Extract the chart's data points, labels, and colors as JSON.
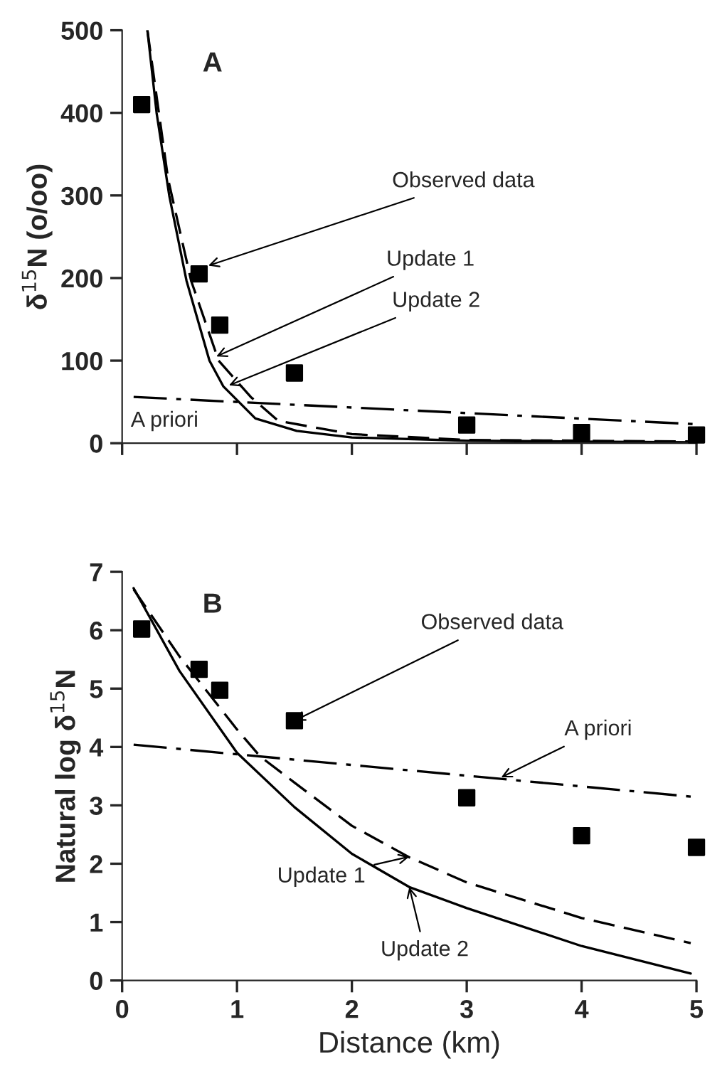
{
  "chart_data": [
    {
      "type": "line",
      "title": "A",
      "ylabel": "δ$^{15}$N (o/oo)",
      "xlim": [
        0,
        5
      ],
      "ylim": [
        0,
        500
      ],
      "xticks": [
        0,
        1,
        2,
        3,
        4,
        5
      ],
      "yticks": [
        0,
        100,
        200,
        300,
        400,
        500
      ],
      "tick_labels": "y",
      "grid": false,
      "legend": false,
      "series": [
        {
          "type": "scatter",
          "color": "#000000",
          "marker": "square",
          "x": [
            0.17,
            0.67,
            0.85,
            1.5,
            3,
            4,
            5
          ],
          "values": [
            410,
            205,
            143,
            85,
            22,
            13,
            10
          ]
        },
        {
          "color": "#000000",
          "line_style": "dashed",
          "x": [
            0.22,
            0.3,
            0.4,
            0.6,
            0.84,
            1.12,
            1.36,
            2.0,
            3.0,
            4.0,
            5.0
          ],
          "values": [
            500,
            420,
            320,
            197,
            100,
            56,
            27,
            11,
            4,
            3,
            2
          ]
        },
        {
          "color": "#000000",
          "line_style": "solid",
          "x": [
            0.22,
            0.3,
            0.41,
            0.56,
            0.76,
            0.88,
            1.16,
            1.52,
            2.0,
            3.0,
            4.0,
            5.0
          ],
          "values": [
            500,
            400,
            300,
            197,
            100,
            69,
            30,
            15,
            7,
            3,
            2,
            1
          ]
        },
        {
          "color": "#000000",
          "line_style": "dashdot",
          "x": [
            0.1,
            5.0
          ],
          "values": [
            56,
            23
          ]
        }
      ],
      "annotations": [
        {
          "text": "Observed data",
          "x": 0.75,
          "y": 215
        },
        {
          "text": "Update 1",
          "x": 0.82,
          "y": 105
        },
        {
          "text": "Update 2",
          "x": 0.93,
          "y": 70
        },
        "A priori"
      ]
    },
    {
      "type": "line",
      "title": "B",
      "xlabel": "Distance (km)",
      "ylabel": "Natural log δ$^{15}$N",
      "xlim": [
        0,
        5
      ],
      "ylim": [
        0,
        7
      ],
      "xticks": [
        0,
        1,
        2,
        3,
        4,
        5
      ],
      "yticks": [
        0,
        1,
        2,
        3,
        4,
        5,
        6,
        7
      ],
      "grid": false,
      "legend": false,
      "series": [
        {
          "type": "scatter",
          "color": "#000000",
          "marker": "square",
          "x": [
            0.17,
            0.67,
            0.85,
            1.5,
            3,
            4,
            5
          ],
          "values": [
            6.02,
            5.33,
            4.97,
            4.45,
            3.13,
            2.48,
            2.28
          ]
        },
        {
          "color": "#000000",
          "line_style": "dashed",
          "x": [
            0.1,
            0.5,
            1.0,
            1.2,
            1.5,
            2.0,
            2.5,
            3.0,
            4.0,
            4.95
          ],
          "values": [
            6.7,
            5.55,
            4.3,
            3.84,
            3.39,
            2.65,
            2.11,
            1.68,
            1.07,
            0.64
          ]
        },
        {
          "color": "#000000",
          "line_style": "solid",
          "x": [
            0.1,
            0.5,
            1.0,
            1.5,
            2.0,
            2.5,
            3.0,
            4.0,
            4.95
          ],
          "values": [
            6.72,
            5.3,
            3.9,
            2.97,
            2.17,
            1.6,
            1.24,
            0.59,
            0.12
          ]
        },
        {
          "color": "#000000",
          "line_style": "dashdot",
          "x": [
            0.1,
            4.95
          ],
          "values": [
            4.04,
            3.15
          ]
        }
      ],
      "annotations": [
        {
          "text": "Observed data",
          "x": 1.5,
          "y": 4.45
        },
        {
          "text": "A priori",
          "x": 3.3,
          "y": 3.48
        },
        {
          "text": "Update 1",
          "x": 2.5,
          "y": 2.12
        },
        {
          "text": "Update 2",
          "x": 2.5,
          "y": 1.6
        }
      ]
    }
  ]
}
